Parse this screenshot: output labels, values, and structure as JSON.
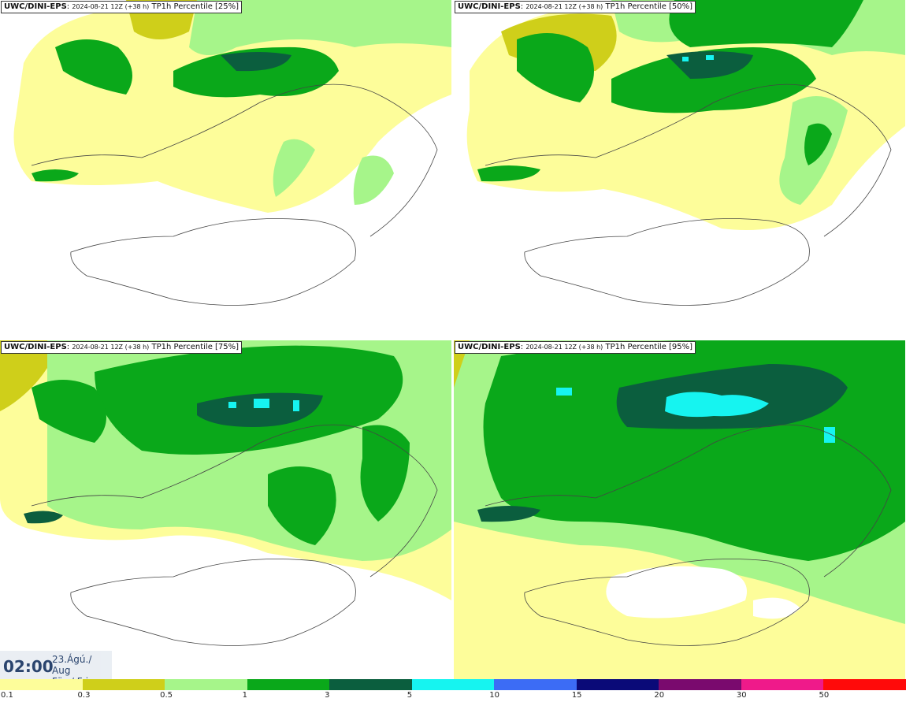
{
  "panels": [
    {
      "source": "UWC/DINI-EPS",
      "run": "2024-08-21 12Z (+38 h)",
      "field": "TP1h Percentile [25%]",
      "percentile": 25
    },
    {
      "source": "UWC/DINI-EPS",
      "run": "2024-08-21 12Z (+38 h)",
      "field": "TP1h Percentile [50%]",
      "percentile": 50
    },
    {
      "source": "UWC/DINI-EPS",
      "run": "2024-08-21 12Z (+38 h)",
      "field": "TP1h Percentile [75%]",
      "percentile": 75
    },
    {
      "source": "UWC/DINI-EPS",
      "run": "2024-08-21 12Z (+38 h)",
      "field": "TP1h Percentile [95%]",
      "percentile": 95
    }
  ],
  "valid_time": {
    "time": "02:00",
    "date_line1": "23.Ágú./ Aug",
    "date_line2": "Fös./ Fri"
  },
  "legend": {
    "labels": [
      "0.1",
      "0.3",
      "0.5",
      "1",
      "3",
      "5",
      "10",
      "15",
      "20",
      "30",
      "50"
    ],
    "colors": [
      "#fdfd9a",
      "#cfcf1a",
      "#a6f58a",
      "#0aa81a",
      "#0b5e3e",
      "#16f4f0",
      "#3c6cf5",
      "#0a0a78",
      "#7a0a6e",
      "#ef1a8a",
      "#ff0a0a"
    ]
  }
}
